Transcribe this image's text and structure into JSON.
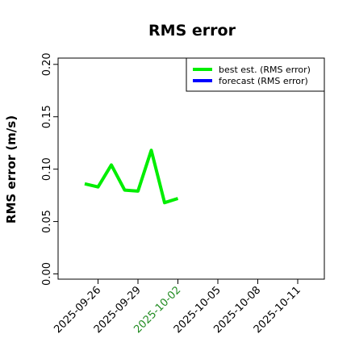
{
  "chart_data": {
    "type": "line",
    "title": "RMS error",
    "y_label": "RMS error (m/s)",
    "x": [
      "2025-09-25",
      "2025-09-26",
      "2025-09-27",
      "2025-09-28",
      "2025-09-29",
      "2025-09-30",
      "2025-10-01",
      "2025-10-02"
    ],
    "series": [
      {
        "name": "best est. (RMS error)",
        "color": "#00ee00",
        "values": [
          0.086,
          0.083,
          0.104,
          0.08,
          0.079,
          0.118,
          0.068,
          0.072
        ]
      },
      {
        "name": "forecast (RMS error)",
        "color": "#0000ff",
        "values": [
          null,
          null,
          null,
          null,
          null,
          null,
          null,
          null
        ]
      }
    ],
    "xlim": [
      "2025-09-23",
      "2025-10-13"
    ],
    "xticks": [
      "2025-09-26",
      "2025-09-29",
      "2025-10-02",
      "2025-10-05",
      "2025-10-08",
      "2025-10-11"
    ],
    "ylim": [
      -0.005,
      0.206
    ],
    "yticks": [
      {
        "value": 0,
        "label": "0.00"
      },
      0.05,
      {
        "value": 0.1,
        "label": "0.10"
      },
      0.15,
      {
        "value": 0.2,
        "label": "0.20"
      }
    ],
    "highlight_xtick": "2025-10-02",
    "highlight_color": "#228b22",
    "legend": "upper right",
    "grid": false
  }
}
